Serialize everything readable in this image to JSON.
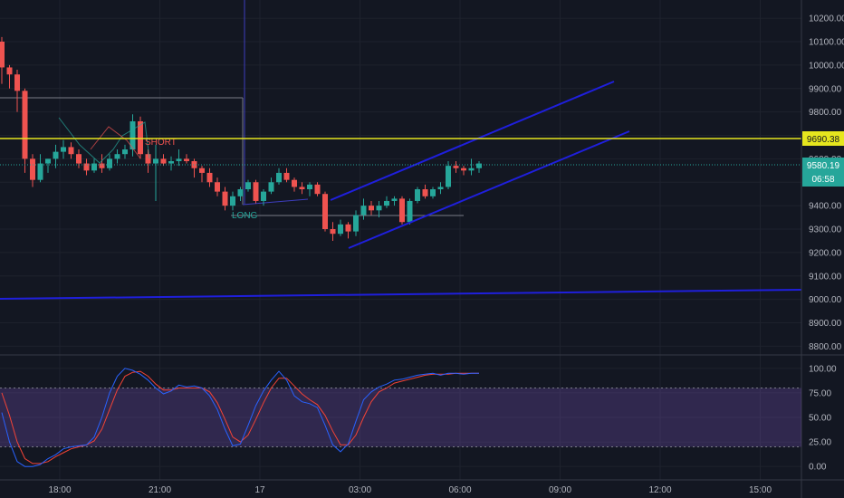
{
  "colors": {
    "background": "#131722",
    "grid": "#1e222d",
    "axis_text": "#b2b5be",
    "up": "#26a69a",
    "down": "#ef5350",
    "channel": "#1f1fdc",
    "price_line": "#e6e61e",
    "k_line": "#2962ff",
    "d_line": "#f44336",
    "stoch_band": "#7e57c2"
  },
  "chart_data": {
    "type": "candlestick",
    "y_axis": {
      "ticks": [
        "10200.00",
        "10100.00",
        "10000.00",
        "9900.00",
        "9800.00",
        "9700.00",
        "9600.00",
        "9500.00",
        "9400.00",
        "9300.00",
        "9200.00",
        "9100.00",
        "9000.00",
        "8900.00",
        "8800.00"
      ],
      "range": [
        8790,
        10270
      ]
    },
    "x_axis": {
      "ticks": [
        "18:00",
        "21:00",
        "17",
        "03:00",
        "06:00",
        "09:00",
        "12:00",
        "15:00"
      ]
    },
    "price_tags": {
      "yellow_line": "9690.38",
      "last_price": "9580.19",
      "countdown": "06:58"
    },
    "annotations": {
      "short_label": "SHORT",
      "long_label": "LONG"
    },
    "candles": [
      [
        10100,
        10120,
        9920,
        9990
      ],
      [
        9990,
        10000,
        9900,
        9960
      ],
      [
        9960,
        9980,
        9800,
        9890
      ],
      [
        9890,
        9900,
        9540,
        9600
      ],
      [
        9600,
        9620,
        9480,
        9510
      ],
      [
        9510,
        9620,
        9500,
        9580
      ],
      [
        9580,
        9600,
        9540,
        9600
      ],
      [
        9600,
        9660,
        9560,
        9630
      ],
      [
        9630,
        9680,
        9600,
        9650
      ],
      [
        9650,
        9670,
        9600,
        9620
      ],
      [
        9620,
        9640,
        9560,
        9580
      ],
      [
        9580,
        9600,
        9530,
        9550
      ],
      [
        9550,
        9600,
        9540,
        9580
      ],
      [
        9580,
        9620,
        9540,
        9560
      ],
      [
        9560,
        9620,
        9550,
        9600
      ],
      [
        9600,
        9640,
        9580,
        9620
      ],
      [
        9620,
        9660,
        9600,
        9640
      ],
      [
        9640,
        9790,
        9610,
        9760
      ],
      [
        9760,
        9780,
        9600,
        9620
      ],
      [
        9620,
        9640,
        9540,
        9580
      ],
      [
        9580,
        9660,
        9420,
        9600
      ],
      [
        9600,
        9620,
        9570,
        9580
      ],
      [
        9580,
        9610,
        9550,
        9590
      ],
      [
        9590,
        9640,
        9570,
        9600
      ],
      [
        9600,
        9620,
        9580,
        9590
      ],
      [
        9590,
        9600,
        9520,
        9560
      ],
      [
        9560,
        9570,
        9500,
        9540
      ],
      [
        9540,
        9560,
        9480,
        9500
      ],
      [
        9500,
        9520,
        9440,
        9460
      ],
      [
        9460,
        9480,
        9380,
        9400
      ],
      [
        9400,
        9460,
        9380,
        9440
      ],
      [
        9440,
        9480,
        9420,
        9470
      ],
      [
        9470,
        9510,
        9460,
        9500
      ],
      [
        9500,
        9510,
        9410,
        9420
      ],
      [
        9420,
        9470,
        9400,
        9460
      ],
      [
        9460,
        9520,
        9450,
        9500
      ],
      [
        9500,
        9560,
        9490,
        9540
      ],
      [
        9540,
        9560,
        9500,
        9510
      ],
      [
        9510,
        9520,
        9460,
        9480
      ],
      [
        9480,
        9500,
        9450,
        9470
      ],
      [
        9470,
        9500,
        9440,
        9490
      ],
      [
        9490,
        9500,
        9440,
        9450
      ],
      [
        9450,
        9460,
        9290,
        9300
      ],
      [
        9300,
        9330,
        9250,
        9280
      ],
      [
        9280,
        9340,
        9270,
        9320
      ],
      [
        9320,
        9330,
        9260,
        9290
      ],
      [
        9290,
        9380,
        9270,
        9360
      ],
      [
        9360,
        9430,
        9340,
        9400
      ],
      [
        9400,
        9420,
        9360,
        9380
      ],
      [
        9380,
        9420,
        9350,
        9400
      ],
      [
        9400,
        9440,
        9390,
        9420
      ],
      [
        9420,
        9440,
        9400,
        9430
      ],
      [
        9430,
        9440,
        9320,
        9330
      ],
      [
        9330,
        9430,
        9320,
        9420
      ],
      [
        9420,
        9480,
        9410,
        9470
      ],
      [
        9470,
        9490,
        9430,
        9440
      ],
      [
        9440,
        9480,
        9430,
        9470
      ],
      [
        9470,
        9500,
        9450,
        9480
      ],
      [
        9480,
        9590,
        9470,
        9570
      ],
      [
        9570,
        9590,
        9540,
        9560
      ],
      [
        9560,
        9570,
        9530,
        9550
      ],
      [
        9550,
        9600,
        9530,
        9560
      ],
      [
        9560,
        9590,
        9540,
        9580
      ]
    ],
    "stochastic": {
      "ticks": [
        "100.00",
        "75.00",
        "50.00",
        "25.00",
        "0.00"
      ],
      "range": [
        -10,
        110
      ],
      "band": [
        20,
        80
      ],
      "k": [
        55,
        25,
        5,
        0,
        0,
        2,
        8,
        12,
        18,
        20,
        21,
        22,
        30,
        50,
        75,
        92,
        100,
        98,
        94,
        88,
        80,
        74,
        77,
        83,
        81,
        82,
        80,
        72,
        58,
        38,
        21,
        23,
        42,
        62,
        77,
        88,
        97,
        88,
        72,
        66,
        64,
        60,
        42,
        22,
        15,
        23,
        46,
        68,
        76,
        81,
        84,
        88,
        89,
        91,
        93,
        94,
        95,
        93,
        95,
        95,
        94,
        95,
        95
      ],
      "d": [
        75,
        52,
        25,
        8,
        3,
        3,
        5,
        10,
        14,
        18,
        20,
        22,
        26,
        38,
        58,
        78,
        92,
        96,
        97,
        92,
        84,
        78,
        78,
        80,
        80,
        80,
        80,
        76,
        65,
        48,
        30,
        25,
        32,
        48,
        65,
        80,
        90,
        90,
        82,
        74,
        68,
        63,
        52,
        36,
        22,
        22,
        32,
        50,
        66,
        76,
        80,
        85,
        87,
        89,
        91,
        93,
        94,
        94,
        94,
        95,
        95,
        95,
        95
      ]
    }
  }
}
